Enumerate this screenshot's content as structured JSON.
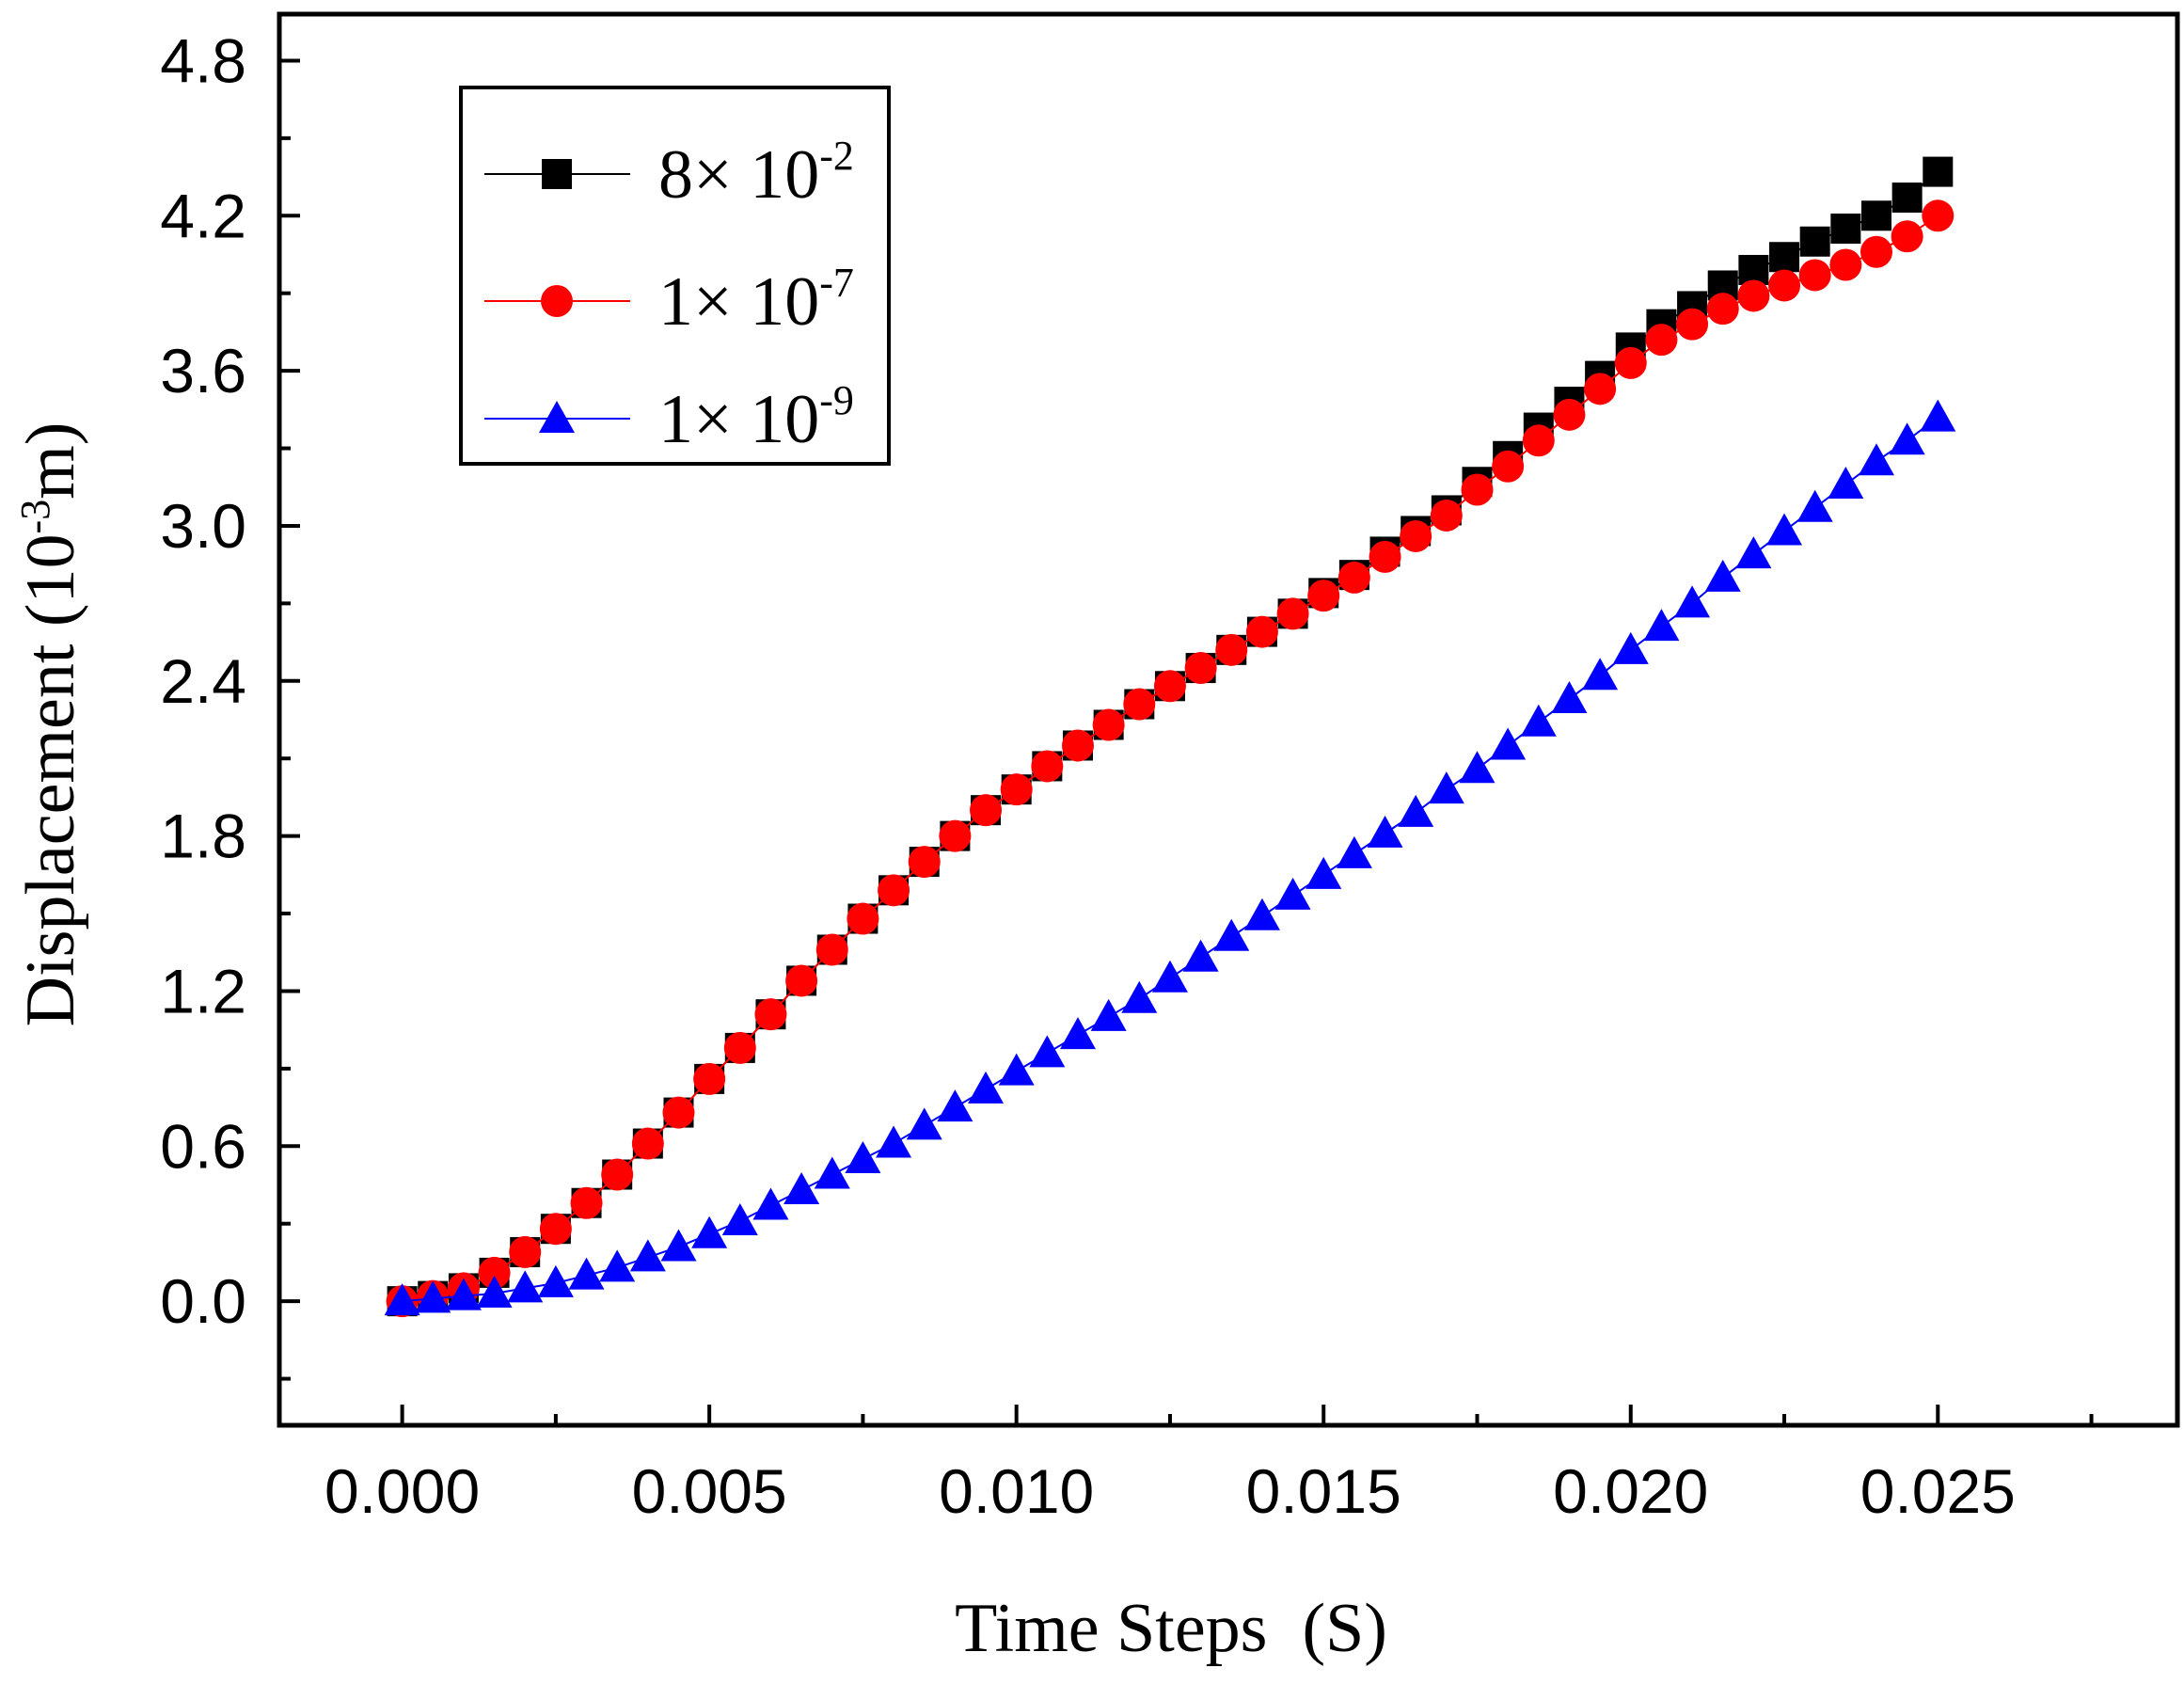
{
  "chart_data": {
    "type": "scatter",
    "title": "",
    "xlabel": "Time Steps  (S)",
    "ylabel": {
      "main": "Displacement (10",
      "exp": "-3",
      "unit": "m)"
    },
    "xlim": [
      -0.002,
      0.0289
    ],
    "ylim": [
      -0.48,
      4.98
    ],
    "x_ticks": [
      0.0,
      0.005,
      0.01,
      0.015,
      0.02,
      0.025
    ],
    "x_tick_labels": [
      "0.000",
      "0.005",
      "0.010",
      "0.015",
      "0.020",
      "0.025"
    ],
    "y_ticks": [
      0.0,
      0.6,
      1.2,
      1.8,
      2.4,
      3.0,
      3.6,
      4.2,
      4.8
    ],
    "y_tick_labels": [
      "0.0",
      "0.6",
      "1.2",
      "1.8",
      "2.4",
      "3.0",
      "3.6",
      "4.2",
      "4.8"
    ],
    "grid": false,
    "legend_position": "top-left",
    "x": [
      0.0,
      0.0005,
      0.001,
      0.0015,
      0.002,
      0.0025,
      0.003,
      0.0035,
      0.004,
      0.0045,
      0.005,
      0.0055,
      0.006,
      0.0065,
      0.007,
      0.0075,
      0.008,
      0.0085,
      0.009,
      0.0095,
      0.01,
      0.0105,
      0.011,
      0.0115,
      0.012,
      0.0125,
      0.013,
      0.0135,
      0.014,
      0.0145,
      0.015,
      0.0155,
      0.016,
      0.0165,
      0.017,
      0.0175,
      0.018,
      0.0185,
      0.019,
      0.0195,
      0.02,
      0.0205,
      0.021,
      0.0215,
      0.022,
      0.0225,
      0.023,
      0.0235,
      0.024,
      0.0245,
      0.025
    ],
    "series": [
      {
        "name_main": "8× 10",
        "name_exp": "-2",
        "color": "#000000",
        "marker": "square",
        "values": [
          0.0,
          0.02,
          0.05,
          0.11,
          0.19,
          0.28,
          0.38,
          0.49,
          0.61,
          0.73,
          0.86,
          0.98,
          1.11,
          1.24,
          1.36,
          1.48,
          1.59,
          1.7,
          1.8,
          1.9,
          1.98,
          2.07,
          2.15,
          2.23,
          2.31,
          2.38,
          2.45,
          2.52,
          2.59,
          2.66,
          2.74,
          2.81,
          2.9,
          2.98,
          3.06,
          3.17,
          3.27,
          3.38,
          3.48,
          3.58,
          3.69,
          3.78,
          3.85,
          3.93,
          3.99,
          4.04,
          4.1,
          4.15,
          4.2,
          4.27,
          4.37
        ]
      },
      {
        "name_main": "1× 10",
        "name_exp": "-7",
        "color": "#ff0000",
        "marker": "circle",
        "values": [
          0.0,
          0.02,
          0.05,
          0.11,
          0.19,
          0.28,
          0.38,
          0.49,
          0.61,
          0.73,
          0.86,
          0.98,
          1.11,
          1.24,
          1.36,
          1.48,
          1.59,
          1.7,
          1.8,
          1.9,
          1.98,
          2.07,
          2.15,
          2.23,
          2.31,
          2.38,
          2.45,
          2.52,
          2.59,
          2.66,
          2.73,
          2.8,
          2.88,
          2.96,
          3.04,
          3.14,
          3.23,
          3.33,
          3.43,
          3.53,
          3.63,
          3.72,
          3.78,
          3.84,
          3.89,
          3.93,
          3.97,
          4.01,
          4.06,
          4.12,
          4.2
        ]
      },
      {
        "name_main": "1× 10",
        "name_exp": "-9",
        "color": "#0000ff",
        "marker": "triangle",
        "values": [
          0.0,
          0.01,
          0.02,
          0.03,
          0.05,
          0.07,
          0.1,
          0.13,
          0.17,
          0.21,
          0.26,
          0.31,
          0.37,
          0.43,
          0.49,
          0.55,
          0.61,
          0.68,
          0.75,
          0.82,
          0.89,
          0.96,
          1.03,
          1.1,
          1.17,
          1.25,
          1.33,
          1.41,
          1.49,
          1.57,
          1.65,
          1.73,
          1.81,
          1.89,
          1.98,
          2.06,
          2.15,
          2.24,
          2.33,
          2.42,
          2.52,
          2.61,
          2.7,
          2.8,
          2.89,
          2.98,
          3.07,
          3.16,
          3.25,
          3.33,
          3.42
        ]
      }
    ]
  }
}
